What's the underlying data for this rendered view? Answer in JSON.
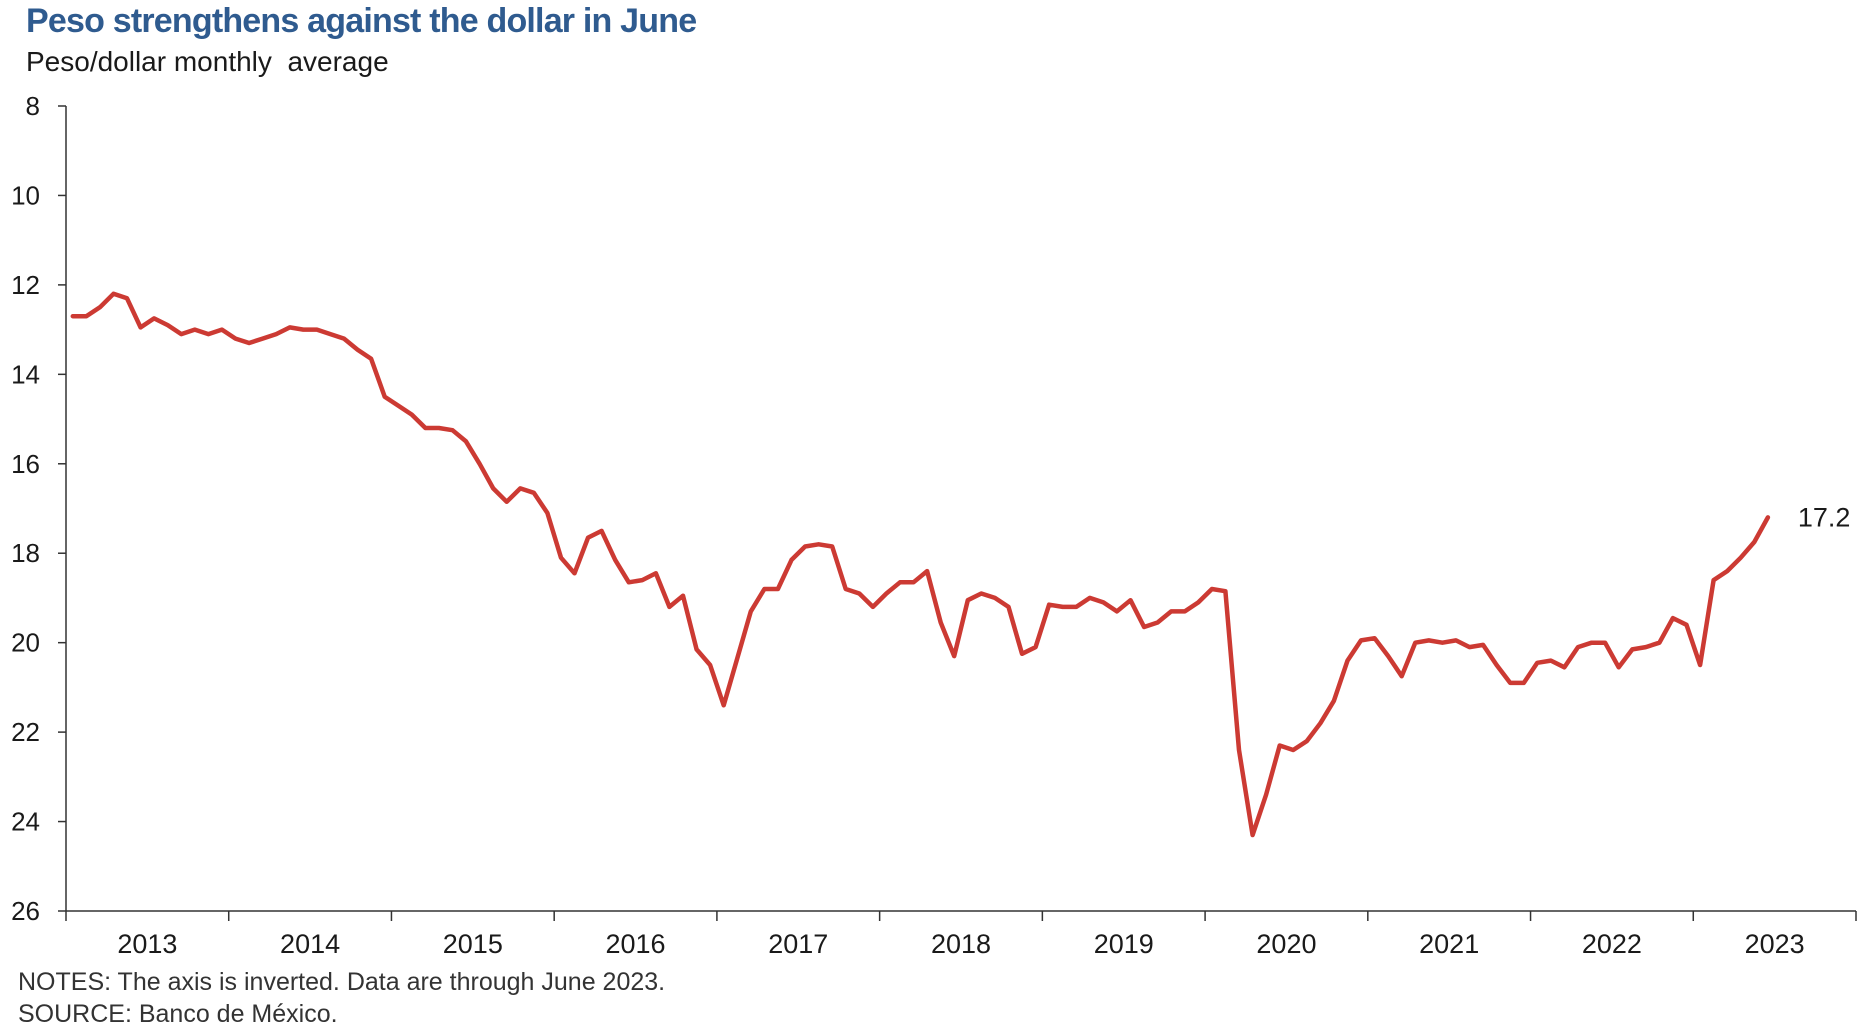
{
  "title": "Peso strengthens against the dollar in June",
  "subtitle": "Peso/dollar monthly  average",
  "notes": "NOTES: The axis is inverted. Data are through June 2023.",
  "source": "SOURCE: Banco de México.",
  "colors": {
    "line": "#cc3a33",
    "title": "#2f5b8f",
    "axis": "#333333"
  },
  "chart_data": {
    "type": "line",
    "title": "Peso strengthens against the dollar in June",
    "ylabel": "Peso/dollar monthly  average",
    "xlabel": "",
    "y_inverted": true,
    "ylim": [
      8,
      26
    ],
    "yticks": [
      8,
      10,
      12,
      14,
      16,
      18,
      20,
      22,
      24,
      26
    ],
    "grid": false,
    "legend": "none",
    "xticks": [
      "2013",
      "2014",
      "2015",
      "2016",
      "2017",
      "2018",
      "2019",
      "2020",
      "2021",
      "2022",
      "2023"
    ],
    "end_label": "17.2",
    "series": [
      {
        "start": "2013-01",
        "frequency": "monthly",
        "values": [
          12.7,
          12.7,
          12.5,
          12.2,
          12.3,
          12.95,
          12.75,
          12.9,
          13.1,
          13.0,
          13.1,
          13.0,
          13.2,
          13.3,
          13.2,
          13.1,
          12.95,
          13.0,
          13.0,
          13.1,
          13.2,
          13.45,
          13.65,
          14.5,
          14.7,
          14.9,
          15.2,
          15.2,
          15.25,
          15.5,
          16.0,
          16.55,
          16.85,
          16.55,
          16.65,
          17.1,
          18.1,
          18.45,
          17.65,
          17.5,
          18.15,
          18.65,
          18.6,
          18.45,
          19.2,
          18.95,
          20.15,
          20.5,
          21.4,
          20.35,
          19.3,
          18.8,
          18.8,
          18.15,
          17.85,
          17.8,
          17.85,
          18.8,
          18.9,
          19.2,
          18.9,
          18.65,
          18.65,
          18.4,
          19.55,
          20.3,
          19.05,
          18.9,
          19.0,
          19.2,
          20.25,
          20.1,
          19.15,
          19.2,
          19.2,
          19.0,
          19.1,
          19.3,
          19.05,
          19.65,
          19.55,
          19.3,
          19.3,
          19.1,
          18.8,
          18.85,
          22.4,
          24.3,
          23.4,
          22.3,
          22.4,
          22.2,
          21.8,
          21.3,
          20.4,
          19.95,
          19.9,
          20.3,
          20.75,
          20.0,
          19.95,
          20.0,
          19.95,
          20.1,
          20.05,
          20.5,
          20.9,
          20.9,
          20.45,
          20.4,
          20.55,
          20.1,
          20.0,
          20.0,
          20.55,
          20.15,
          20.1,
          20.0,
          19.45,
          19.6,
          20.5,
          18.6,
          18.4,
          18.1,
          17.75,
          17.2
        ]
      }
    ]
  }
}
